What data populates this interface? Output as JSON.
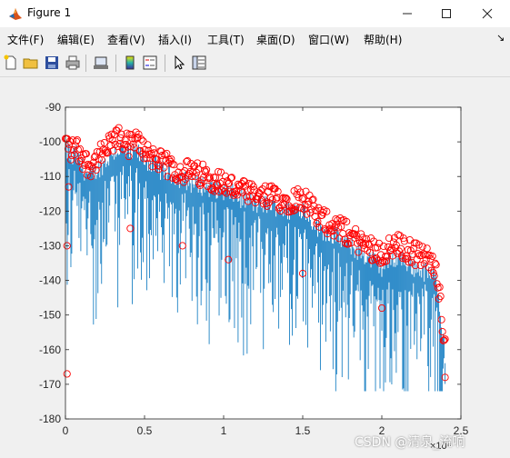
{
  "window": {
    "title": "Figure 1"
  },
  "menubar": {
    "items": [
      "文件(F)",
      "编辑(E)",
      "查看(V)",
      "插入(I)",
      "工具(T)",
      "桌面(D)",
      "窗口(W)",
      "帮助(H)"
    ]
  },
  "toolbar": {
    "icons": [
      "new-figure-icon",
      "open-file-icon",
      "save-icon",
      "print-icon",
      "link-plot-icon",
      "insert-colorbar-icon",
      "insert-legend-icon",
      "edit-plot-arrow-icon",
      "property-inspector-icon"
    ]
  },
  "watermark": "CSDN @清泉_流响",
  "colors": {
    "stem": "#0072bd",
    "marker": "#ff0000",
    "axes_bg": "#ffffff",
    "figure_bg": "#f0f0f0"
  },
  "chart_data": {
    "type": "scatter",
    "title": "",
    "xlabel": "",
    "ylabel": "",
    "xlim": [
      0,
      25000
    ],
    "ylim": [
      -180,
      -90
    ],
    "x_ticks": [
      0,
      5000,
      10000,
      15000,
      20000,
      25000
    ],
    "x_tick_labels": [
      "0",
      "0.5",
      "1",
      "1.5",
      "2",
      "2.5"
    ],
    "x_exponent_label": "×10⁴",
    "y_ticks": [
      -180,
      -170,
      -160,
      -150,
      -140,
      -130,
      -120,
      -110,
      -100,
      -90
    ],
    "y_tick_labels": [
      "-180",
      "-170",
      "-160",
      "-150",
      "-140",
      "-130",
      "-120",
      "-110",
      "-100",
      "-90"
    ],
    "grid": false,
    "legend": "none",
    "series": [
      {
        "style": "line",
        "color": "#0072bd",
        "note_x": "spectrum trace from x=0 to x=24000, drops to minima near -172",
        "x": [
          0,
          200,
          400,
          600,
          1000,
          1500,
          2000,
          2500,
          3000,
          3500,
          4000,
          4500,
          5000,
          6000,
          7000,
          8000,
          9000,
          10000,
          11000,
          12000,
          13000,
          14000,
          15000,
          16000,
          17000,
          18000,
          19000,
          20000,
          21000,
          22000,
          23000,
          23500,
          23800,
          24000
        ],
        "y": [
          -104,
          -102,
          -106,
          -103,
          -107,
          -110,
          -108,
          -106,
          -103,
          -102,
          -104,
          -103,
          -105,
          -108,
          -110,
          -112,
          -113,
          -114,
          -116,
          -118,
          -118,
          -120,
          -119,
          -125,
          -127,
          -130,
          -133,
          -136,
          -133,
          -136,
          -138,
          -140,
          -152,
          -162
        ]
      },
      {
        "style": "markers",
        "color": "#ff0000",
        "x": [
          0,
          200,
          400,
          600,
          1000,
          1500,
          2000,
          2500,
          3000,
          3500,
          4000,
          4500,
          5000,
          6000,
          7000,
          8000,
          9000,
          10000,
          11000,
          12000,
          13000,
          14000,
          15000,
          16000,
          17000,
          18000,
          19000,
          20000,
          21000,
          22000,
          23000,
          23500,
          23800,
          24000
        ],
        "y": [
          -100,
          -101,
          -103,
          -101,
          -104,
          -107,
          -105,
          -103,
          -100,
          -99,
          -101,
          -100,
          -102,
          -106,
          -108,
          -109,
          -110,
          -112,
          -114,
          -116,
          -116,
          -117,
          -116,
          -122,
          -124,
          -127,
          -130,
          -132,
          -130,
          -132,
          -134,
          -138,
          -150,
          -160
        ]
      }
    ],
    "low_markers": [
      {
        "x": 100,
        "y": -167
      },
      {
        "x": 100,
        "y": -130
      },
      {
        "x": 200,
        "y": -113
      },
      {
        "x": 4100,
        "y": -125
      },
      {
        "x": 7400,
        "y": -130
      },
      {
        "x": 10300,
        "y": -134
      },
      {
        "x": 15000,
        "y": -138
      },
      {
        "x": 20000,
        "y": -148
      },
      {
        "x": 24000,
        "y": -168
      }
    ]
  }
}
